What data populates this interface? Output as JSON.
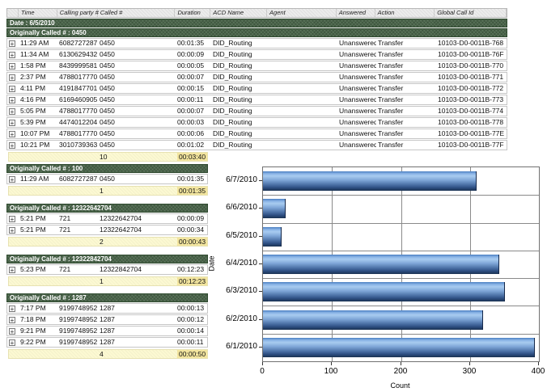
{
  "report": {
    "columns": [
      "Time",
      "Calling party #",
      "Called #",
      "Duration",
      "ACD Name",
      "Agent",
      "Answered",
      "Action",
      "Global Call Id"
    ],
    "date_band": "Date : 6/5/2010",
    "main_group": {
      "header": "Originally Called # : 0450",
      "rows": [
        [
          "11:29 AM",
          "6082727287",
          "0450",
          "00:01:35",
          "DID_Routing",
          "",
          "Unanswered",
          "Transfer",
          "10103-D0-0011B-768"
        ],
        [
          "11:34 AM",
          "6130629432",
          "0450",
          "00:00:09",
          "DID_Routing",
          "",
          "Unanswered",
          "Transfer",
          "10103-D0-0011B-76F"
        ],
        [
          "1:58 PM",
          "8439999581",
          "0450",
          "00:00:05",
          "DID_Routing",
          "",
          "Unanswered",
          "Transfer",
          "10103-D0-0011B-770"
        ],
        [
          "2:37 PM",
          "4788017770",
          "0450",
          "00:00:07",
          "DID_Routing",
          "",
          "Unanswered",
          "Transfer",
          "10103-D0-0011B-771"
        ],
        [
          "4:11 PM",
          "4191847701",
          "0450",
          "00:00:15",
          "DID_Routing",
          "",
          "Unanswered",
          "Transfer",
          "10103-D0-0011B-772"
        ],
        [
          "4:16 PM",
          "6169460905",
          "0450",
          "00:00:11",
          "DID_Routing",
          "",
          "Unanswered",
          "Transfer",
          "10103-D0-0011B-773"
        ],
        [
          "5:05 PM",
          "4788017770",
          "0450",
          "00:00:07",
          "DID_Routing",
          "",
          "Unanswered",
          "Transfer",
          "10103-D0-0011B-774"
        ],
        [
          "5:39 PM",
          "4474012204",
          "0450",
          "00:00:03",
          "DID_Routing",
          "",
          "Unanswered",
          "Transfer",
          "10103-D0-0011B-778"
        ],
        [
          "10:07 PM",
          "4788017770",
          "0450",
          "00:00:06",
          "DID_Routing",
          "",
          "Unanswered",
          "Transfer",
          "10103-D0-0011B-77E"
        ],
        [
          "10:21 PM",
          "3010739363",
          "0450",
          "00:01:02",
          "DID_Routing",
          "",
          "Unanswered",
          "Transfer",
          "10103-D0-0011B-77F"
        ]
      ],
      "summary": {
        "count": "10",
        "total": "00:03:40"
      }
    },
    "groups": [
      {
        "header": "Originally Called # : 100",
        "rows": [
          [
            "11:29 AM",
            "6082727287",
            "0450",
            "00:01:35"
          ]
        ],
        "summary": {
          "count": "1",
          "total": "00:01:35"
        }
      },
      {
        "header": "Originally Called # : 12322642704",
        "rows": [
          [
            "5:21 PM",
            "721",
            "12322642704",
            "00:00:09"
          ],
          [
            "5:21 PM",
            "721",
            "12322642704",
            "00:00:34"
          ]
        ],
        "summary": {
          "count": "2",
          "total": "00:00:43"
        }
      },
      {
        "header": "Originally Called # : 12322842704",
        "rows": [
          [
            "5:23 PM",
            "721",
            "12322842704",
            "00:12:23"
          ]
        ],
        "summary": {
          "count": "1",
          "total": "00:12:23"
        }
      },
      {
        "header": "Originally Called # : 1287",
        "rows": [
          [
            "7:17 PM",
            "9199748952",
            "1287",
            "00:00:13"
          ],
          [
            "7:18 PM",
            "9199748952",
            "1287",
            "00:00:12"
          ],
          [
            "9:21 PM",
            "9199748952",
            "1287",
            "00:00:14"
          ],
          [
            "9:22 PM",
            "9199748952",
            "1287",
            "00:00:11"
          ]
        ],
        "summary": {
          "count": "4",
          "total": "00:00:50"
        }
      }
    ]
  },
  "chart_data": {
    "type": "bar",
    "orientation": "horizontal",
    "categories": [
      "6/7/2010",
      "6/6/2010",
      "6/5/2010",
      "6/4/2010",
      "6/3/2010",
      "6/2/2010",
      "6/1/2010"
    ],
    "values": [
      308,
      32,
      26,
      341,
      349,
      318,
      393
    ],
    "title": "",
    "xlabel": "Count",
    "ylabel": "Date",
    "xlim": [
      0,
      400
    ],
    "xticks": [
      0,
      100,
      200,
      300,
      400
    ],
    "grid": "on",
    "bar_color": "#4a7fc1"
  },
  "icons": {
    "expand": "+"
  },
  "colors": {
    "group_band": "#4a654a",
    "summary_bg": "#fcf9d2",
    "summary_total_bg": "#f5e7a0",
    "bar_top": "#a8cbf0",
    "bar_bottom": "#1b3252",
    "grid": "#8a8a8a"
  }
}
